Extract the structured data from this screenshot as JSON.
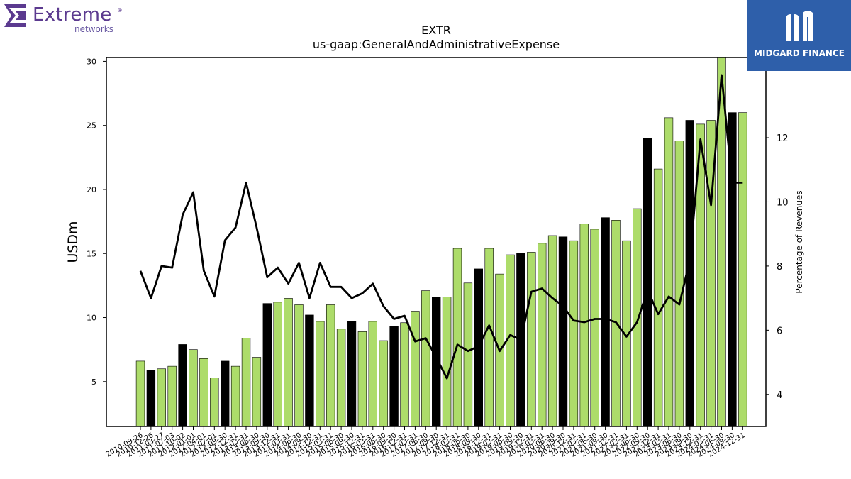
{
  "logos": {
    "left_name": "Extreme",
    "left_sub": "networks",
    "left_registered": "®",
    "right_name": "MIDGARD FINANCE"
  },
  "chart_data": {
    "type": "bar",
    "title": "EXTR",
    "subtitle": "us-gaap:GeneralAndAdministrativeExpense",
    "ylabel": "USDm",
    "y2label": "Percentage of Revenues",
    "ylim": [
      1.5,
      30.3
    ],
    "y2lim": [
      3.0,
      14.5
    ],
    "yticks": [
      5,
      10,
      15,
      20,
      25,
      30
    ],
    "y2ticks": [
      4,
      6,
      8,
      10,
      12
    ],
    "colors": {
      "bar": "#addc6a",
      "bar_fy": "#000000",
      "line": "#000000"
    },
    "categories": [
      "2010-09-26",
      "2010-12-26",
      "2011-03-27",
      "2011-07-03",
      "2011-10-02",
      "2012-01-01",
      "2012-04-01",
      "2012-07-01",
      "2012-09-30",
      "2012-12-31",
      "2013-03-31",
      "2013-06-30",
      "2013-09-30",
      "2013-12-31",
      "2014-03-31",
      "2014-06-30",
      "2014-09-30",
      "2014-12-31",
      "2015-03-31",
      "2015-06-30",
      "2015-09-30",
      "2015-12-31",
      "2016-03-31",
      "2016-06-30",
      "2016-09-30",
      "2016-12-31",
      "2017-03-31",
      "2017-06-30",
      "2017-09-30",
      "2017-12-31",
      "2018-03-31",
      "2018-06-30",
      "2018-09-30",
      "2018-12-31",
      "2019-03-31",
      "2019-06-30",
      "2019-09-30",
      "2019-12-31",
      "2020-03-31",
      "2020-06-30",
      "2020-09-30",
      "2020-12-31",
      "2021-03-31",
      "2021-06-30",
      "2021-09-30",
      "2021-12-31",
      "2022-03-31",
      "2022-06-30",
      "2022-09-30",
      "2022-12-31",
      "2023-03-31",
      "2023-06-30",
      "2023-09-30",
      "2023-12-31",
      "2024-03-31",
      "2024-06-30",
      "2024-09-30",
      "2024-12-31"
    ],
    "fiscal_year_end": [
      false,
      true,
      false,
      false,
      true,
      false,
      false,
      false,
      true,
      false,
      false,
      false,
      true,
      false,
      false,
      false,
      true,
      false,
      false,
      false,
      true,
      false,
      false,
      false,
      true,
      false,
      false,
      false,
      true,
      false,
      false,
      false,
      true,
      false,
      false,
      false,
      true,
      false,
      false,
      false,
      true,
      false,
      false,
      false,
      true,
      false,
      false,
      false,
      true,
      false,
      false,
      false,
      true,
      false,
      false,
      false,
      true,
      false
    ],
    "series": [
      {
        "name": "USDm",
        "values": [
          6.6,
          5.9,
          6.0,
          6.2,
          7.9,
          7.5,
          6.8,
          5.3,
          6.6,
          6.2,
          8.4,
          6.9,
          11.1,
          11.2,
          11.5,
          11.0,
          10.2,
          9.7,
          11.0,
          9.1,
          9.7,
          8.9,
          9.7,
          8.2,
          9.3,
          9.6,
          10.5,
          12.1,
          11.6,
          11.6,
          15.4,
          12.7,
          13.8,
          15.4,
          13.4,
          14.9,
          15.0,
          15.1,
          15.8,
          16.4,
          16.3,
          16.0,
          17.3,
          16.9,
          17.8,
          17.6,
          16.0,
          18.5,
          24.0,
          21.6,
          25.6,
          23.8,
          25.4,
          25.1,
          25.4,
          30.5,
          26.0,
          26.0
        ]
      },
      {
        "name": "Percentage of Revenues",
        "values": [
          7.85,
          7.0,
          8.0,
          7.95,
          9.6,
          10.3,
          7.85,
          7.05,
          8.8,
          9.2,
          10.6,
          9.2,
          7.65,
          7.95,
          7.45,
          8.1,
          7.0,
          8.1,
          7.35,
          7.35,
          7.0,
          7.15,
          7.45,
          6.75,
          6.35,
          6.45,
          5.65,
          5.75,
          5.15,
          4.5,
          5.55,
          5.35,
          5.5,
          6.15,
          5.35,
          5.85,
          5.7,
          7.2,
          7.3,
          7.0,
          6.75,
          6.3,
          6.25,
          6.35,
          6.35,
          6.25,
          5.8,
          6.25,
          7.25,
          6.5,
          7.05,
          6.8,
          8.2,
          11.95,
          9.9,
          13.95,
          10.6,
          10.6
        ]
      }
    ]
  }
}
